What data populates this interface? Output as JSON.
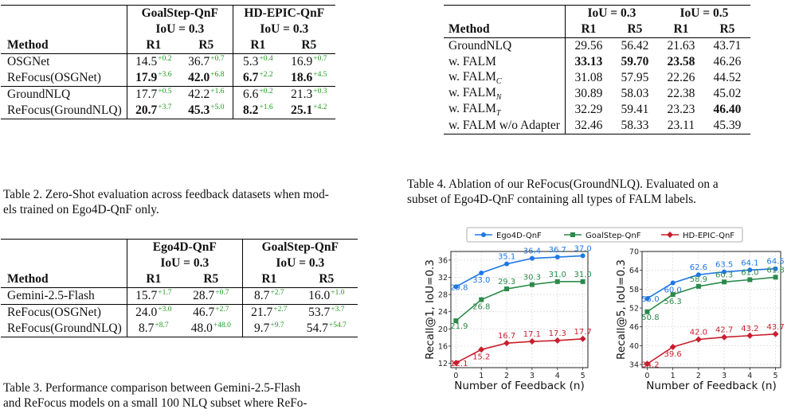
{
  "table2": {
    "groups": [
      "GoalStep-QnF",
      "HD-EPIC-QnF"
    ],
    "iou": [
      "IoU = 0.3",
      "IoU = 0.3"
    ],
    "col_method": "Method",
    "cols": [
      "R1",
      "R5",
      "R1",
      "R5"
    ],
    "rows": [
      {
        "name": "OSGNet",
        "cells": [
          {
            "v": "14.5",
            "d": "+0.2",
            "b": false
          },
          {
            "v": "36.7",
            "d": "+0.7",
            "b": false
          },
          {
            "v": "5.3",
            "d": "+0.4",
            "b": false
          },
          {
            "v": "16.9",
            "d": "+0.7",
            "b": false
          }
        ]
      },
      {
        "name": "ReFocus(OSGNet)",
        "cells": [
          {
            "v": "17.9",
            "d": "+3.6",
            "b": true
          },
          {
            "v": "42.0",
            "d": "+6.8",
            "b": true
          },
          {
            "v": "6.7",
            "d": "+2.2",
            "b": true
          },
          {
            "v": "18.6",
            "d": "+4.5",
            "b": true
          }
        ]
      },
      {
        "name": "GroundNLQ",
        "cells": [
          {
            "v": "17.7",
            "d": "+0.5",
            "b": false
          },
          {
            "v": "42.2",
            "d": "+1.6",
            "b": false
          },
          {
            "v": "6.6",
            "d": "+0.2",
            "b": false
          },
          {
            "v": "21.3",
            "d": "+0.3",
            "b": false
          }
        ]
      },
      {
        "name": "ReFocus(GroundNLQ)",
        "cells": [
          {
            "v": "20.7",
            "d": "+3.7",
            "b": true
          },
          {
            "v": "45.3",
            "d": "+5.0",
            "b": true
          },
          {
            "v": "8.2",
            "d": "+1.6",
            "b": true
          },
          {
            "v": "25.1",
            "d": "+4.2",
            "b": true
          }
        ]
      }
    ],
    "caption": [
      "Table 2. Zero-Shot evaluation across feedback datasets when mod-",
      "els trained on Ego4D-QnF only."
    ]
  },
  "table3": {
    "groups": [
      "Ego4D-QnF",
      "GoalStep-QnF"
    ],
    "iou": [
      "IoU = 0.3",
      "IoU = 0.3"
    ],
    "col_method": "Method",
    "cols": [
      "R1",
      "R5",
      "R1",
      "R5"
    ],
    "rows": [
      {
        "name": "Gemini-2.5-Flash",
        "cells": [
          {
            "v": "15.7",
            "d": "+1.7"
          },
          {
            "v": "28.7",
            "d": "+0.7"
          },
          {
            "v": "8.7",
            "d": "+2.7"
          },
          {
            "v": "16.0",
            "d": "+1.0"
          }
        ]
      },
      {
        "name": "ReFocus(OSGNet)",
        "cells": [
          {
            "v": "24.0",
            "d": "+3.0"
          },
          {
            "v": "46.7",
            "d": "+2.7"
          },
          {
            "v": "21.7",
            "d": "+2.7"
          },
          {
            "v": "53.7",
            "d": "+3.7"
          }
        ]
      },
      {
        "name": "ReFocus(GroundNLQ)",
        "cells": [
          {
            "v": "8.7",
            "d": "+8.7"
          },
          {
            "v": "48.0",
            "d": "+48.0"
          },
          {
            "v": "9.7",
            "d": "+9.7"
          },
          {
            "v": "54.7",
            "d": "+54.7"
          }
        ]
      }
    ],
    "caption": [
      "Table 3.  Performance comparison between Gemini-2.5-Flash",
      "and ReFocus models on a small 100 NLQ subset where ReFo-"
    ]
  },
  "table4": {
    "iou": [
      "IoU = 0.3",
      "IoU = 0.5"
    ],
    "col_method": "Method",
    "cols": [
      "R1",
      "R5",
      "R1",
      "R5"
    ],
    "rows": [
      {
        "name": "GroundNLQ",
        "sub": "",
        "cells": [
          "29.56",
          "56.42",
          "21.63",
          "43.71"
        ],
        "bold": [
          false,
          false,
          false,
          false
        ]
      },
      {
        "name": "w. FALM",
        "sub": "",
        "cells": [
          "33.13",
          "59.70",
          "23.58",
          "46.26"
        ],
        "bold": [
          true,
          true,
          true,
          false
        ]
      },
      {
        "name": "w. FALM",
        "sub": "C",
        "cells": [
          "31.08",
          "57.95",
          "22.26",
          "44.52"
        ],
        "bold": [
          false,
          false,
          false,
          false
        ]
      },
      {
        "name": "w. FALM",
        "sub": "N",
        "cells": [
          "30.89",
          "58.03",
          "22.38",
          "45.02"
        ],
        "bold": [
          false,
          false,
          false,
          false
        ]
      },
      {
        "name": "w. FALM",
        "sub": "T",
        "cells": [
          "32.29",
          "59.41",
          "23.23",
          "46.40"
        ],
        "bold": [
          false,
          false,
          false,
          true
        ]
      },
      {
        "name": "w. FALM w/o Adapter",
        "sub": "",
        "cells": [
          "32.46",
          "58.33",
          "23.11",
          "45.39"
        ],
        "bold": [
          false,
          false,
          false,
          false
        ]
      }
    ],
    "caption": [
      "Table 4.  Ablation of our ReFocus(GroundNLQ). Evaluated on a",
      "subset of Ego4D-QnF containing all types of FALM labels."
    ]
  },
  "chart_data": [
    {
      "type": "line",
      "xlabel": "Number of Feedback (n)",
      "ylabel": "Recall@1, IoU=0.3",
      "x": [
        0,
        1,
        2,
        3,
        4,
        5
      ],
      "ylim": [
        11,
        38
      ],
      "yticks": [
        12,
        16,
        20,
        24,
        28,
        32,
        36
      ],
      "series": [
        {
          "name": "Ego4D-QnF",
          "color": "#1f77e4",
          "marker": "circle",
          "values": [
            29.8,
            33.0,
            35.1,
            36.4,
            36.7,
            37.0
          ],
          "labels": [
            "29.8",
            "33.0",
            "35.1",
            "36.4",
            "36.7",
            "37.0"
          ]
        },
        {
          "name": "GoalStep-QnF",
          "color": "#2a8a4a",
          "marker": "square",
          "values": [
            21.9,
            26.8,
            29.3,
            30.3,
            31.0,
            31.0
          ],
          "labels": [
            "21.9",
            "26.8",
            "29.3",
            "30.3",
            "31.0",
            "31.0"
          ]
        },
        {
          "name": "HD-EPIC-QnF",
          "color": "#c81e2d",
          "marker": "diamond",
          "values": [
            12.1,
            15.2,
            16.7,
            17.1,
            17.3,
            17.7
          ],
          "labels": [
            "12.1",
            "15.2",
            "16.7",
            "17.1",
            "17.3",
            "17.7"
          ]
        }
      ]
    },
    {
      "type": "line",
      "xlabel": "Number of Feedback (n)",
      "ylabel": "Recall@5, IoU=0.3",
      "x": [
        0,
        1,
        2,
        3,
        4,
        5
      ],
      "ylim": [
        33,
        70
      ],
      "yticks": [
        34,
        40,
        46,
        52,
        58,
        64,
        70
      ],
      "series": [
        {
          "name": "Ego4D-QnF",
          "color": "#1f77e4",
          "marker": "circle",
          "values": [
            55.0,
            60.0,
            62.6,
            63.5,
            64.1,
            64.5
          ],
          "labels": [
            "55.0",
            "60.0",
            "62.6",
            "63.5",
            "64.1",
            "64.5"
          ]
        },
        {
          "name": "GoalStep-QnF",
          "color": "#2a8a4a",
          "marker": "square",
          "values": [
            50.8,
            56.3,
            58.9,
            60.3,
            61.0,
            61.8
          ],
          "labels": [
            "50.8",
            "56.3",
            "58.9",
            "60.3",
            "61.0",
            "61.8"
          ]
        },
        {
          "name": "HD-EPIC-QnF",
          "color": "#c81e2d",
          "marker": "diamond",
          "values": [
            34.2,
            39.6,
            42.0,
            42.7,
            43.2,
            43.7
          ],
          "labels": [
            "34.2",
            "39.6",
            "42.0",
            "42.7",
            "43.2",
            "43.7"
          ]
        }
      ]
    }
  ],
  "legend": [
    "Ego4D-QnF",
    "GoalStep-QnF",
    "HD-EPIC-QnF"
  ]
}
